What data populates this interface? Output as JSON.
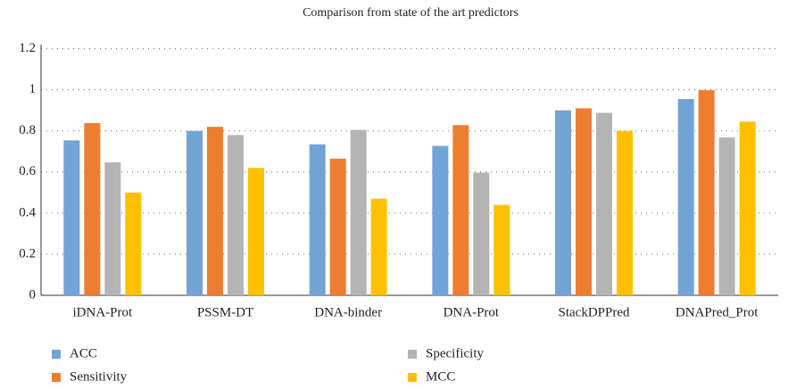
{
  "chart_data": {
    "type": "bar",
    "title": "Comparison from state of the art predictors",
    "categories": [
      "iDNA-Prot",
      "PSSM-DT",
      "DNA-binder",
      "DNA-Prot",
      "StackDPPred",
      "DNAPred_Prot"
    ],
    "series": [
      {
        "name": "ACC",
        "color": "#72a3d6",
        "values": [
          0.754,
          0.8,
          0.735,
          0.727,
          0.9,
          0.955
        ]
      },
      {
        "name": "Sensitivity",
        "color": "#ed7d31",
        "values": [
          0.838,
          0.82,
          0.665,
          0.828,
          0.91,
          0.998
        ]
      },
      {
        "name": "Specificity",
        "color": "#b4b4b4",
        "values": [
          0.647,
          0.78,
          0.805,
          0.597,
          0.888,
          0.768
        ]
      },
      {
        "name": "MCC",
        "color": "#ffc000",
        "values": [
          0.5,
          0.62,
          0.47,
          0.44,
          0.8,
          0.845
        ]
      }
    ],
    "ylim": [
      0,
      1.22
    ],
    "yticks": [
      0,
      0.2,
      0.4,
      0.6,
      0.8,
      1,
      1.2
    ],
    "grid": true
  }
}
